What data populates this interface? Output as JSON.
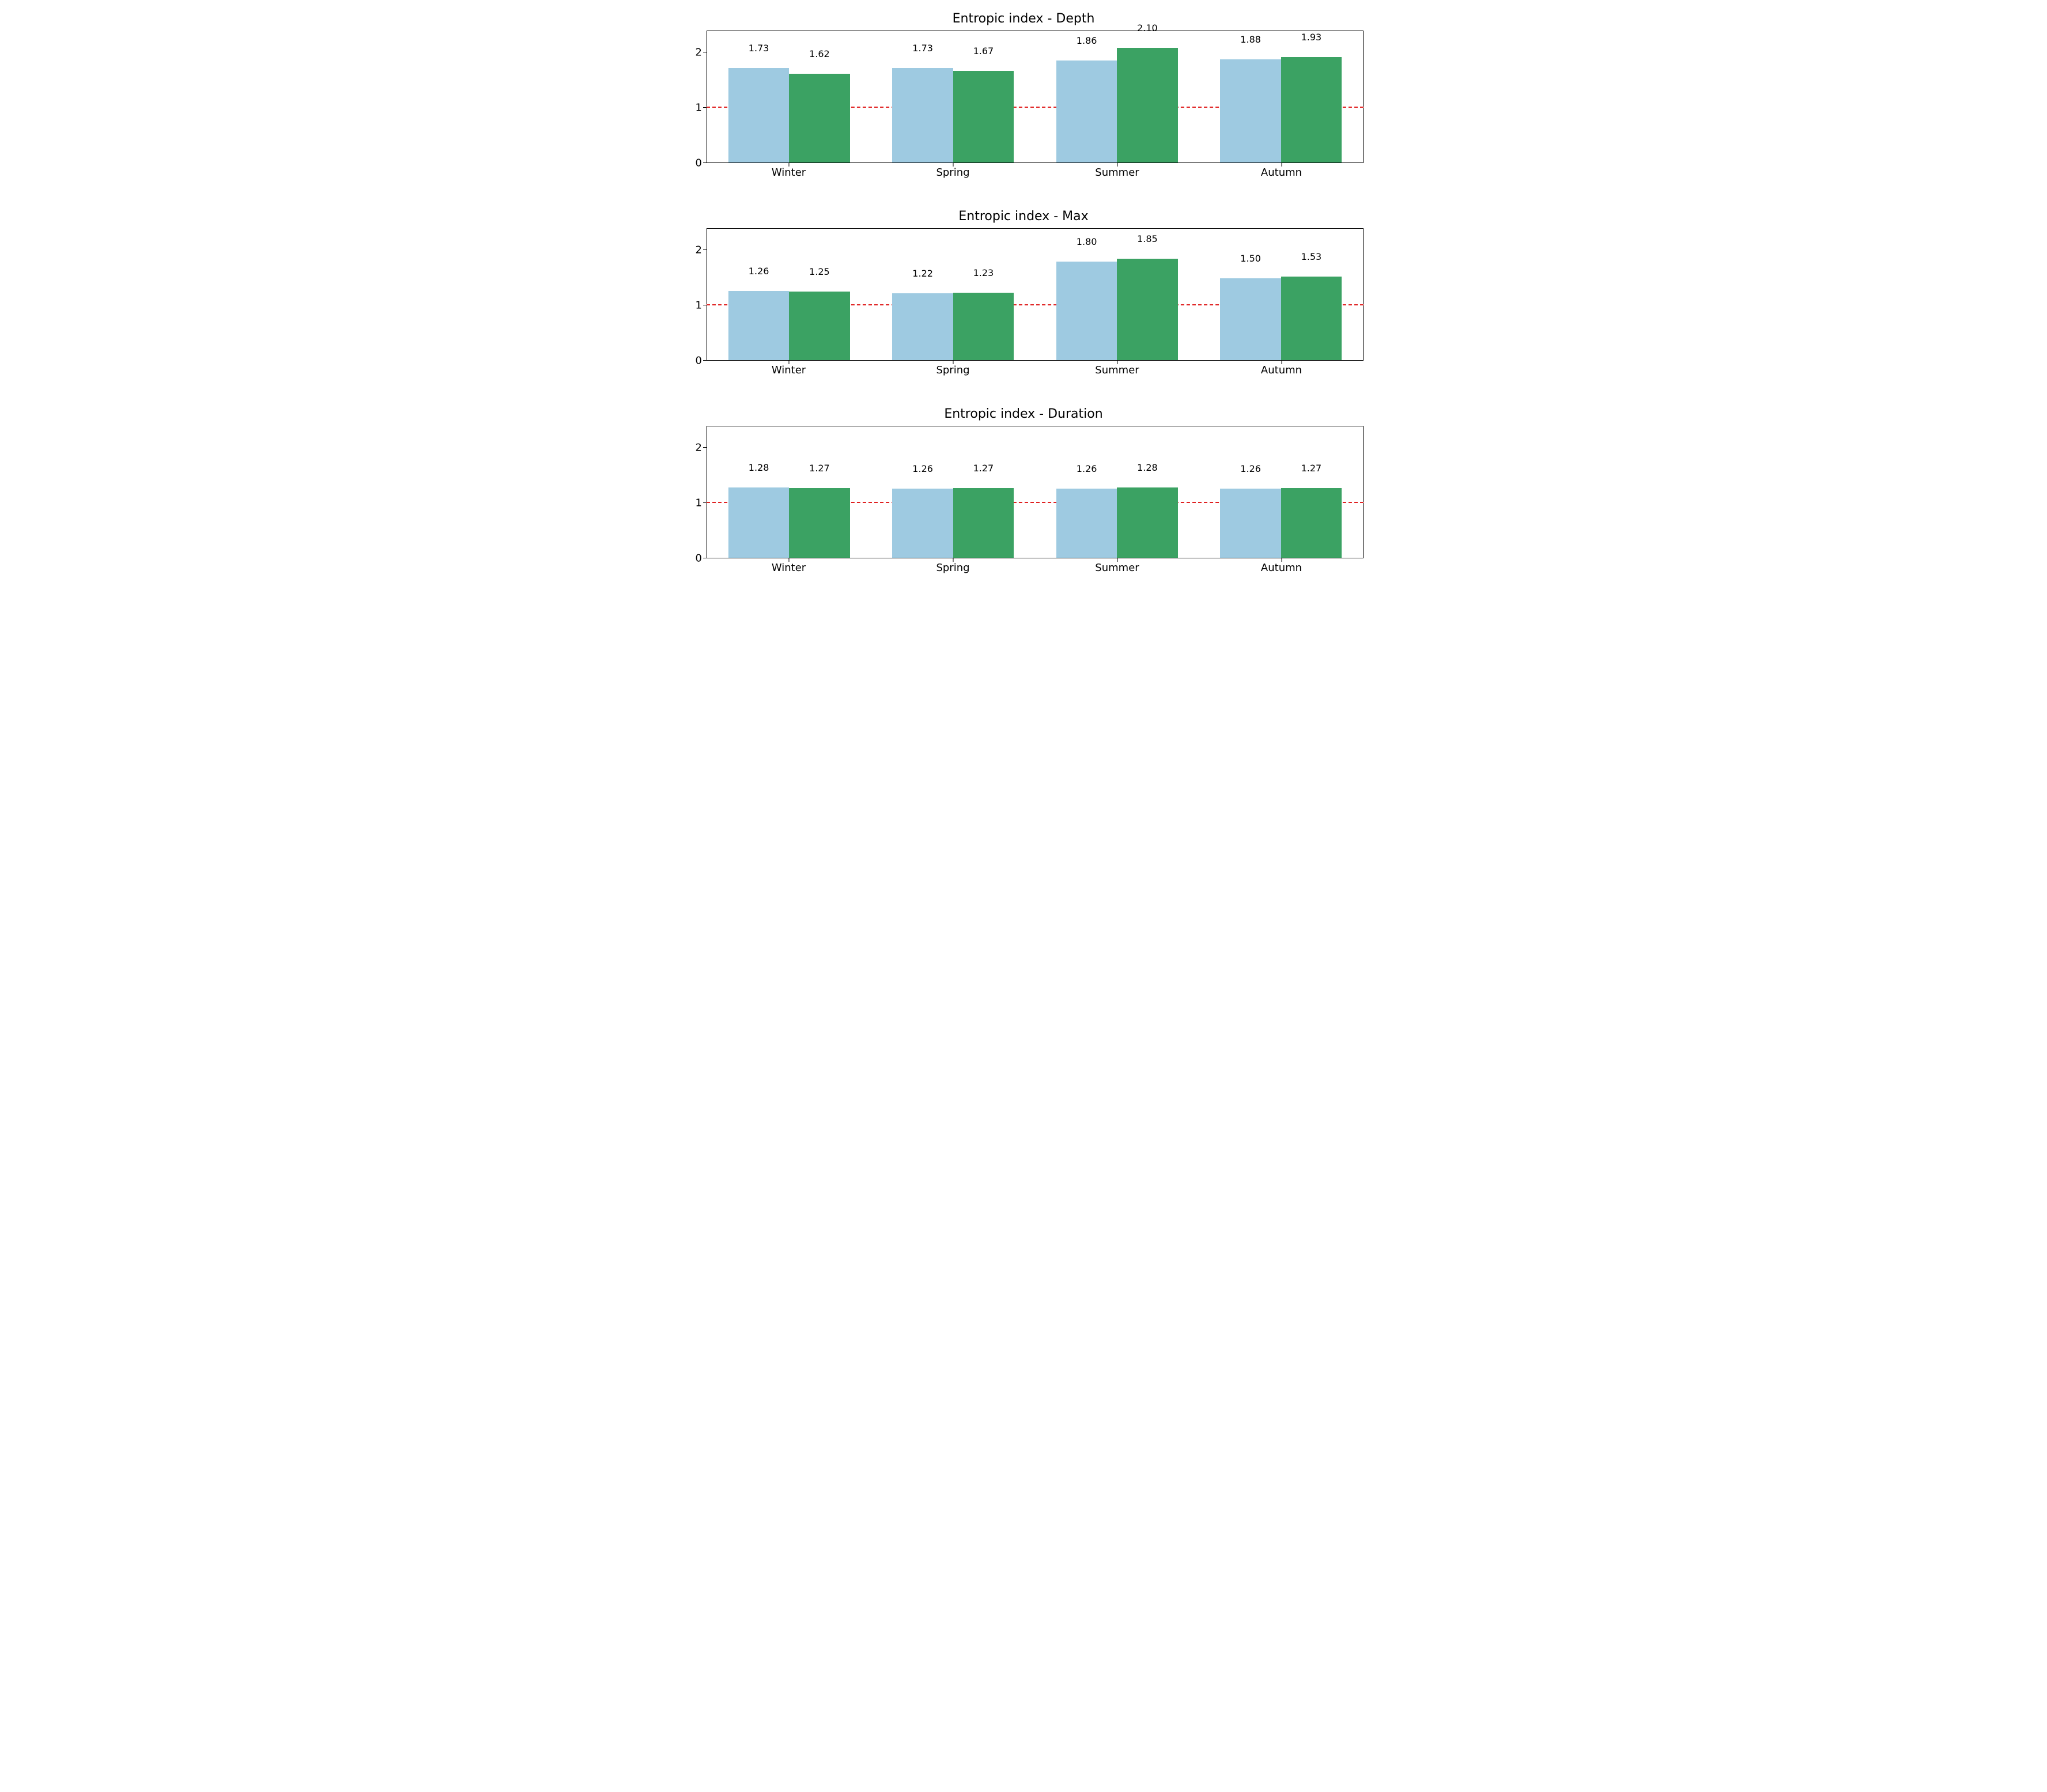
{
  "figure": {
    "background_color": "#ffffff",
    "font_family": "DejaVu Sans, Arial, sans-serif",
    "subplots": [
      {
        "title": "Entropic index - Depth",
        "type": "bar",
        "categories": [
          "Winter",
          "Spring",
          "Summer",
          "Autumn"
        ],
        "series": [
          {
            "color": "#9ecae1",
            "values": [
              1.73,
              1.73,
              1.86,
              1.88
            ]
          },
          {
            "color": "#3ba263",
            "values": [
              1.62,
              1.67,
              2.1,
              1.93
            ]
          }
        ],
        "ylim": [
          0,
          2.4
        ],
        "yticks": [
          0,
          1,
          2
        ],
        "reference_line": {
          "y": 1,
          "color": "#e02020",
          "style": "dashed"
        },
        "bar_width": 0.37,
        "value_label_fontsize": 16,
        "title_fontsize": 22,
        "tick_fontsize": 18,
        "border_color": "#000000"
      },
      {
        "title": "Entropic index - Max",
        "type": "bar",
        "categories": [
          "Winter",
          "Spring",
          "Summer",
          "Autumn"
        ],
        "series": [
          {
            "color": "#9ecae1",
            "values": [
              1.26,
              1.22,
              1.8,
              1.5
            ]
          },
          {
            "color": "#3ba263",
            "values": [
              1.25,
              1.23,
              1.85,
              1.53
            ]
          }
        ],
        "ylim": [
          0,
          2.4
        ],
        "yticks": [
          0,
          1,
          2
        ],
        "reference_line": {
          "y": 1,
          "color": "#e02020",
          "style": "dashed"
        },
        "bar_width": 0.37,
        "value_label_fontsize": 16,
        "title_fontsize": 22,
        "tick_fontsize": 18,
        "border_color": "#000000"
      },
      {
        "title": "Entropic index - Duration",
        "type": "bar",
        "categories": [
          "Winter",
          "Spring",
          "Summer",
          "Autumn"
        ],
        "series": [
          {
            "color": "#9ecae1",
            "values": [
              1.28,
              1.26,
              1.26,
              1.26
            ]
          },
          {
            "color": "#3ba263",
            "values": [
              1.27,
              1.27,
              1.28,
              1.27
            ]
          }
        ],
        "ylim": [
          0,
          2.4
        ],
        "yticks": [
          0,
          1,
          2
        ],
        "reference_line": {
          "y": 1,
          "color": "#e02020",
          "style": "dashed"
        },
        "bar_width": 0.37,
        "value_label_fontsize": 16,
        "title_fontsize": 22,
        "tick_fontsize": 18,
        "border_color": "#000000"
      }
    ]
  }
}
